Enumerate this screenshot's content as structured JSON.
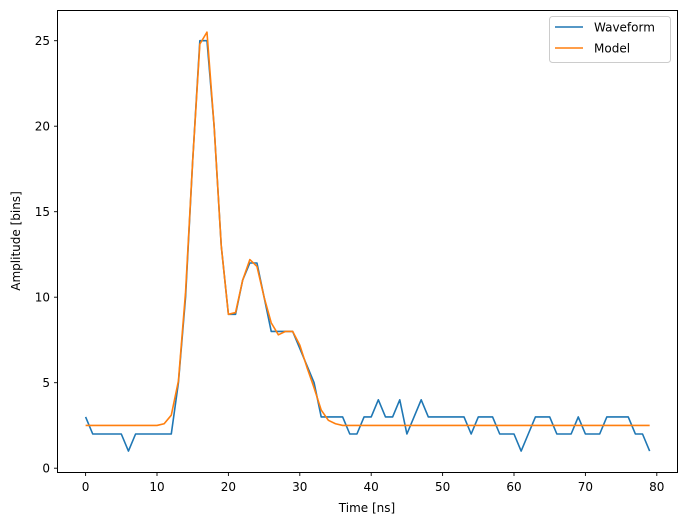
{
  "chart_data": {
    "type": "line",
    "title": "",
    "xlabel": "Time [ns]",
    "ylabel": "Amplitude [bins]",
    "xlim": [
      -4,
      83
    ],
    "ylim": [
      -0.2,
      26.7
    ],
    "xticks": [
      0,
      10,
      20,
      30,
      40,
      50,
      60,
      70,
      80
    ],
    "yticks": [
      0,
      5,
      10,
      15,
      20,
      25
    ],
    "grid": false,
    "legend_position": "upper right",
    "x": [
      0,
      1,
      2,
      3,
      4,
      5,
      6,
      7,
      8,
      9,
      10,
      11,
      12,
      13,
      14,
      15,
      16,
      17,
      18,
      19,
      20,
      21,
      22,
      23,
      24,
      25,
      26,
      27,
      28,
      29,
      30,
      31,
      32,
      33,
      34,
      35,
      36,
      37,
      38,
      39,
      40,
      41,
      42,
      43,
      44,
      45,
      46,
      47,
      48,
      49,
      50,
      51,
      52,
      53,
      54,
      55,
      56,
      57,
      58,
      59,
      60,
      61,
      62,
      63,
      64,
      65,
      66,
      67,
      68,
      69,
      70,
      71,
      72,
      73,
      74,
      75,
      76,
      77,
      78,
      79
    ],
    "series": [
      {
        "name": "Waveform",
        "color": "#1f77b4",
        "values": [
          3,
          2,
          2,
          2,
          2,
          2,
          1,
          2,
          2,
          2,
          2,
          2,
          2,
          5,
          10,
          18,
          25,
          25,
          20,
          13,
          9,
          9,
          11,
          12,
          12,
          10,
          8,
          8,
          8,
          8,
          7,
          6,
          5,
          3,
          3,
          3,
          3,
          2,
          2,
          3,
          3,
          4,
          3,
          3,
          4,
          2,
          3,
          4,
          3,
          3,
          3,
          3,
          3,
          3,
          2,
          3,
          3,
          3,
          2,
          2,
          2,
          1,
          2,
          3,
          3,
          3,
          2,
          2,
          2,
          3,
          2,
          2,
          2,
          3,
          3,
          3,
          3,
          2,
          2,
          1
        ]
      },
      {
        "name": "Model",
        "color": "#ff7f0e",
        "values": [
          2.5,
          2.5,
          2.5,
          2.5,
          2.5,
          2.5,
          2.5,
          2.5,
          2.5,
          2.5,
          2.5,
          2.6,
          3.1,
          5.1,
          10.3,
          18.0,
          24.8,
          25.5,
          20.0,
          13.0,
          9.0,
          9.1,
          11.0,
          12.2,
          11.8,
          10.0,
          8.5,
          7.8,
          8.0,
          8.0,
          7.2,
          5.9,
          4.7,
          3.4,
          2.8,
          2.6,
          2.5,
          2.5,
          2.5,
          2.5,
          2.5,
          2.5,
          2.5,
          2.5,
          2.5,
          2.5,
          2.5,
          2.5,
          2.5,
          2.5,
          2.5,
          2.5,
          2.5,
          2.5,
          2.5,
          2.5,
          2.5,
          2.5,
          2.5,
          2.5,
          2.5,
          2.5,
          2.5,
          2.5,
          2.5,
          2.5,
          2.5,
          2.5,
          2.5,
          2.5,
          2.5,
          2.5,
          2.5,
          2.5,
          2.5,
          2.5,
          2.5,
          2.5,
          2.5,
          2.5
        ]
      }
    ]
  },
  "legend": {
    "items": [
      {
        "label": "Waveform",
        "color": "#1f77b4"
      },
      {
        "label": "Model",
        "color": "#ff7f0e"
      }
    ]
  },
  "axes": {
    "xlabel": "Time [ns]",
    "ylabel": "Amplitude [bins]"
  }
}
